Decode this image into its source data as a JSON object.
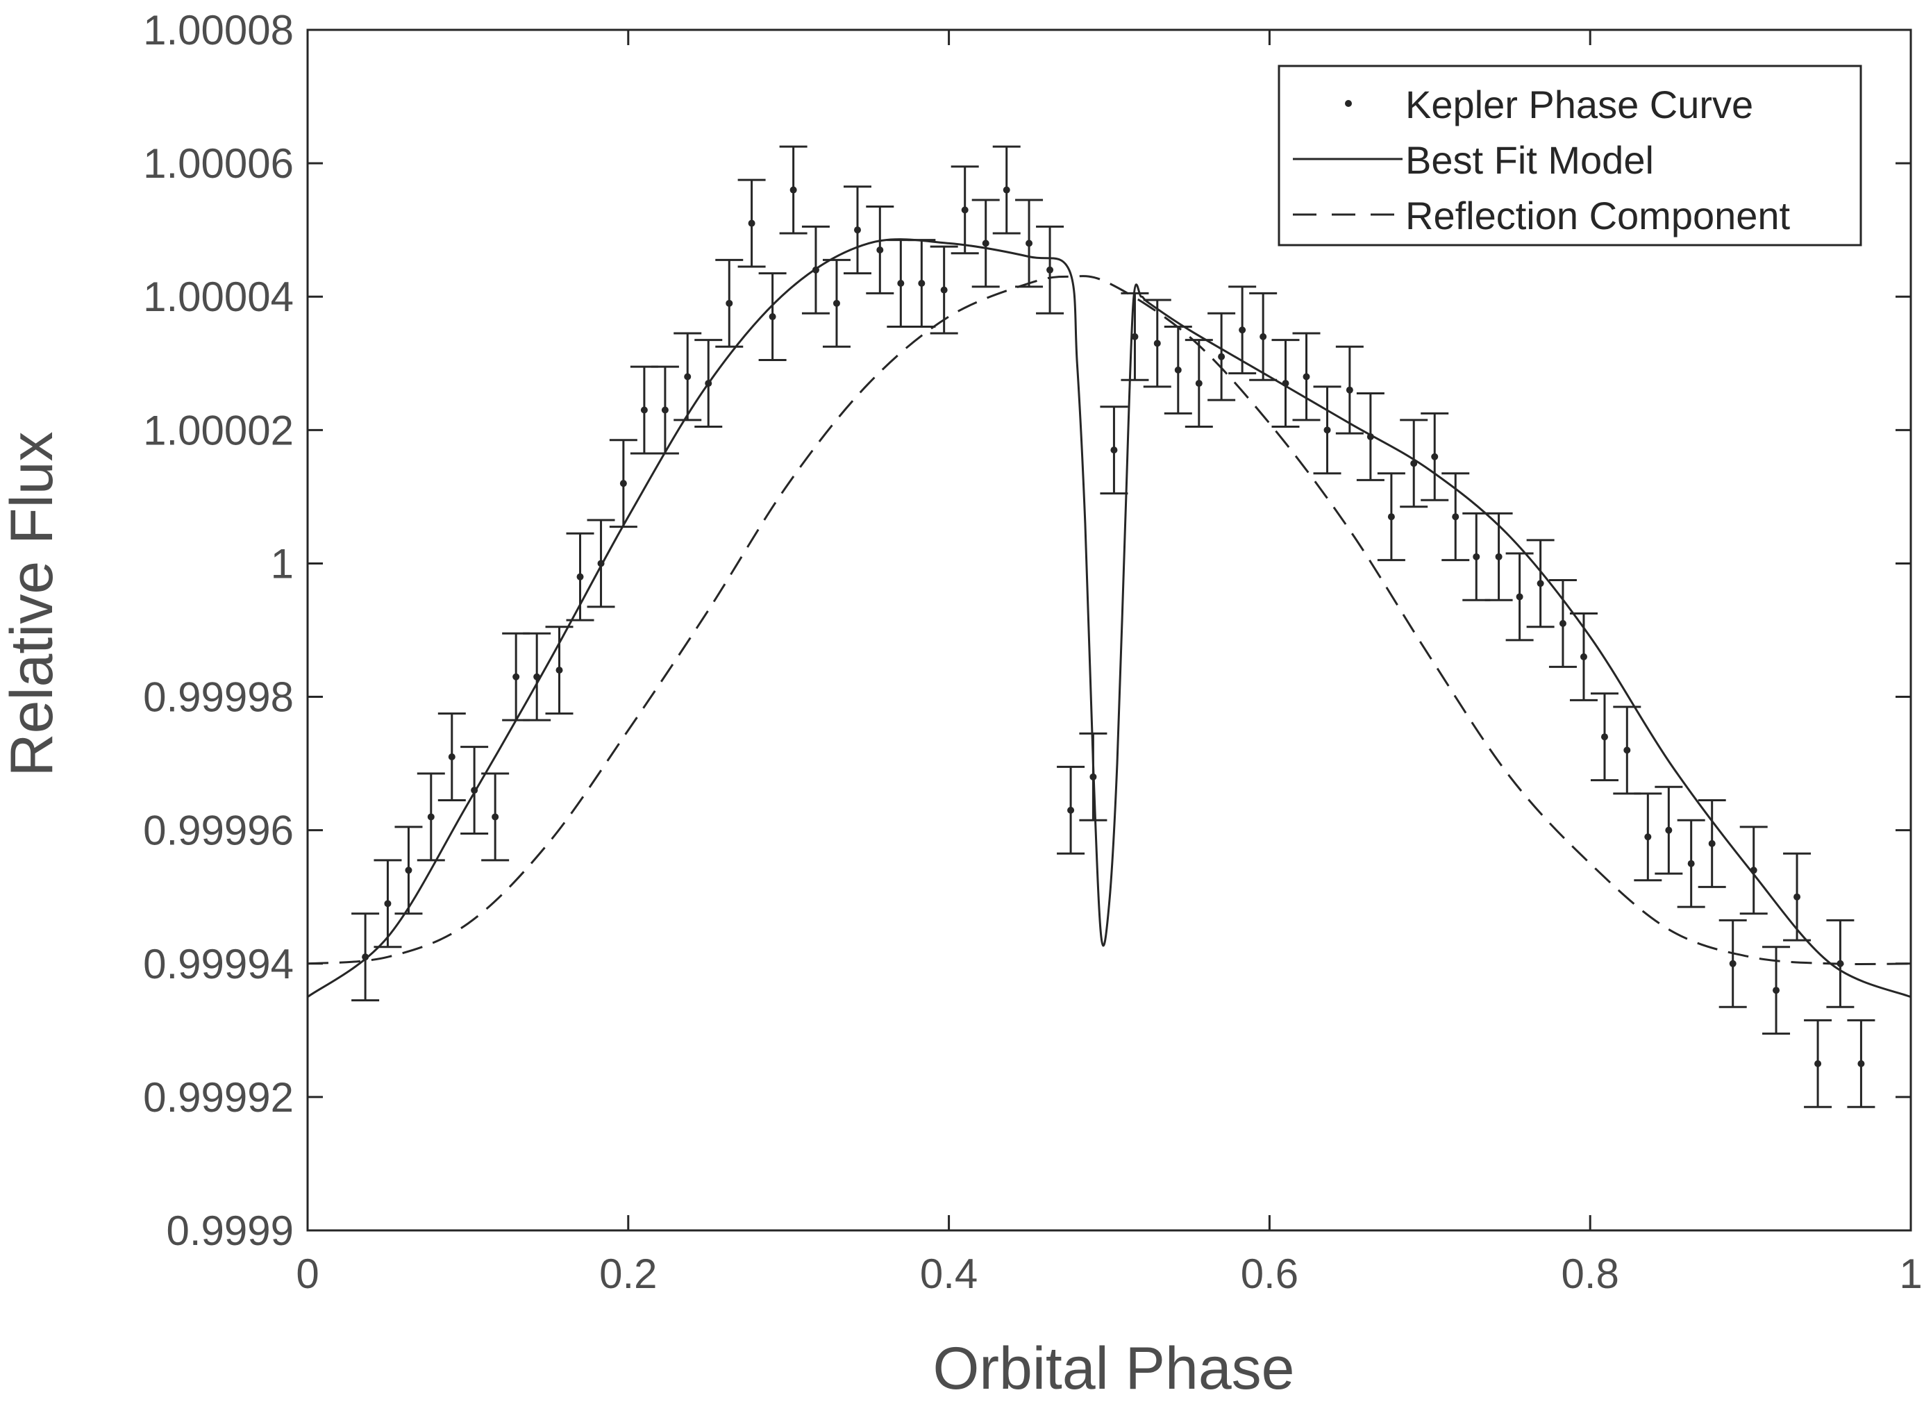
{
  "chart_data": {
    "type": "line",
    "title": "",
    "xlabel": "Orbital Phase",
    "ylabel": "Relative Flux",
    "xlim": [
      0,
      1
    ],
    "ylim": [
      0.9999,
      1.00008
    ],
    "x_ticks": [
      0,
      0.2,
      0.4,
      0.6,
      0.8,
      1
    ],
    "x_tick_labels": [
      "0",
      "0.2",
      "0.4",
      "0.6",
      "0.8",
      "1"
    ],
    "y_ticks": [
      0.9999,
      0.99992,
      0.99994,
      0.99996,
      0.99998,
      1,
      1.00002,
      1.00004,
      1.00006,
      1.00008
    ],
    "y_tick_labels": [
      "0.9999",
      "0.99992",
      "0.99994",
      "0.99996",
      "0.99998",
      "1",
      "1.00002",
      "1.00004",
      "1.00006",
      "1.00008"
    ],
    "grid": false,
    "legend": {
      "position": "top-right",
      "entries": [
        "Kepler Phase Curve",
        "Best Fit Model",
        "Reflection Component"
      ]
    },
    "series": [
      {
        "name": "Kepler Phase Curve",
        "style": "points-with-error-bars",
        "x": [
          0.036,
          0.05,
          0.063,
          0.077,
          0.09,
          0.104,
          0.117,
          0.13,
          0.143,
          0.157,
          0.17,
          0.183,
          0.197,
          0.21,
          0.223,
          0.237,
          0.25,
          0.263,
          0.277,
          0.29,
          0.303,
          0.317,
          0.33,
          0.343,
          0.357,
          0.37,
          0.383,
          0.397,
          0.41,
          0.423,
          0.436,
          0.45,
          0.463,
          0.476,
          0.49,
          0.503,
          0.516,
          0.53,
          0.543,
          0.556,
          0.57,
          0.583,
          0.596,
          0.61,
          0.623,
          0.636,
          0.65,
          0.663,
          0.676,
          0.69,
          0.703,
          0.716,
          0.729,
          0.743,
          0.756,
          0.769,
          0.783,
          0.796,
          0.809,
          0.823,
          0.836,
          0.849,
          0.863,
          0.876,
          0.889,
          0.902,
          0.916,
          0.929,
          0.942,
          0.956,
          0.969
        ],
        "y": [
          0.999941,
          0.999949,
          0.999954,
          0.999962,
          0.999971,
          0.999966,
          0.999962,
          0.999983,
          0.999983,
          0.999984,
          0.999998,
          1.0,
          1.000012,
          1.000023,
          1.000023,
          1.000028,
          1.000027,
          1.000039,
          1.000051,
          1.000037,
          1.000056,
          1.000044,
          1.000039,
          1.00005,
          1.000047,
          1.000042,
          1.000042,
          1.000041,
          1.000053,
          1.000048,
          1.000056,
          1.000048,
          1.000044,
          0.999963,
          0.999968,
          1.000017,
          1.000034,
          1.000033,
          1.000029,
          1.000027,
          1.000031,
          1.000035,
          1.000034,
          1.000027,
          1.000028,
          1.00002,
          1.000026,
          1.000019,
          1.000007,
          1.000015,
          1.000016,
          1.000007,
          1.000001,
          1.000001,
          0.999995,
          0.999997,
          0.999991,
          0.999986,
          0.999974,
          0.999972,
          0.999959,
          0.99996,
          0.999955,
          0.999958,
          0.99994,
          0.999954,
          0.999936,
          0.99995,
          0.999925,
          0.99994,
          0.999925
        ],
        "err": [
          6.5e-06,
          6.5e-06,
          6.5e-06,
          6.5e-06,
          6.5e-06,
          6.5e-06,
          6.5e-06,
          6.5e-06,
          6.5e-06,
          6.5e-06,
          6.5e-06,
          6.5e-06,
          6.5e-06,
          6.5e-06,
          6.5e-06,
          6.5e-06,
          6.5e-06,
          6.5e-06,
          6.5e-06,
          6.5e-06,
          6.5e-06,
          6.5e-06,
          6.5e-06,
          6.5e-06,
          6.5e-06,
          6.5e-06,
          6.5e-06,
          6.5e-06,
          6.5e-06,
          6.5e-06,
          6.5e-06,
          6.5e-06,
          6.5e-06,
          6.5e-06,
          6.5e-06,
          6.5e-06,
          6.5e-06,
          6.5e-06,
          6.5e-06,
          6.5e-06,
          6.5e-06,
          6.5e-06,
          6.5e-06,
          6.5e-06,
          6.5e-06,
          6.5e-06,
          6.5e-06,
          6.5e-06,
          6.5e-06,
          6.5e-06,
          6.5e-06,
          6.5e-06,
          6.5e-06,
          6.5e-06,
          6.5e-06,
          6.5e-06,
          6.5e-06,
          6.5e-06,
          6.5e-06,
          6.5e-06,
          6.5e-06,
          6.5e-06,
          6.5e-06,
          6.5e-06,
          6.5e-06,
          6.5e-06,
          6.5e-06,
          6.5e-06,
          6.5e-06,
          6.5e-06,
          6.5e-06
        ]
      },
      {
        "name": "Best Fit Model",
        "style": "solid-line",
        "x": [
          0,
          0.05,
          0.1,
          0.15,
          0.2,
          0.25,
          0.3,
          0.35,
          0.4,
          0.45,
          0.475,
          0.48,
          0.485,
          0.49,
          0.495,
          0.5,
          0.505,
          0.51,
          0.515,
          0.52,
          0.525,
          0.55,
          0.6,
          0.65,
          0.7,
          0.75,
          0.8,
          0.85,
          0.9,
          0.95,
          1
        ],
        "y": [
          0.999935,
          0.999944,
          0.999964,
          0.999985,
          1.000007,
          1.000027,
          1.000041,
          1.000048,
          1.000048,
          1.000046,
          1.000044,
          1.00003,
          1.000006,
          0.99997,
          0.999944,
          0.999949,
          0.99997,
          1.000006,
          1.000039,
          1.00004,
          1.000039,
          1.000035,
          1.000028,
          1.000021,
          1.000014,
          1.000004,
          0.999989,
          0.99997,
          0.999954,
          0.99994,
          0.999935
        ]
      },
      {
        "name": "Reflection Component",
        "style": "dashed-line",
        "x": [
          0,
          0.05,
          0.1,
          0.15,
          0.2,
          0.25,
          0.3,
          0.35,
          0.4,
          0.45,
          0.475,
          0.5,
          0.55,
          0.6,
          0.65,
          0.7,
          0.75,
          0.8,
          0.85,
          0.9,
          0.95,
          1
        ],
        "y": [
          0.99994,
          0.999941,
          0.999946,
          0.999958,
          0.999975,
          0.999993,
          1.000012,
          1.000027,
          1.000037,
          1.000042,
          1.000043,
          1.000042,
          1.000034,
          1.000021,
          1.000005,
          0.999986,
          0.999968,
          0.999955,
          0.999945,
          0.999941,
          0.99994,
          0.99994
        ]
      }
    ]
  }
}
